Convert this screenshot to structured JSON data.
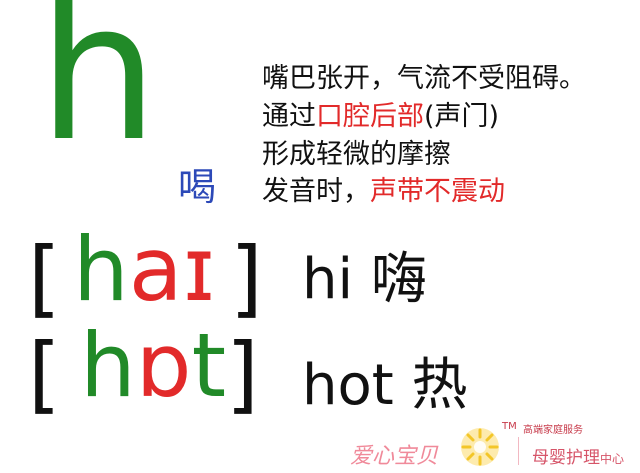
{
  "letter": "h",
  "example_hanzi": "喝",
  "description": {
    "line1": "嘴巴张开，气流不受阻碍。",
    "line2_pre": "通过",
    "line2_red": "口腔后部",
    "line2_post": "(声门)",
    "line3": "形成轻微的摩擦",
    "line4_pre": "发音时，",
    "line4_red": "声带不震动"
  },
  "examples": [
    {
      "bracket_open": "[",
      "ipa_green": "h",
      "ipa_red": "aɪ",
      "bracket_close": "]",
      "word": "hi 嗨"
    },
    {
      "bracket_open": "[",
      "ipa_green": "h",
      "ipa_red": "ɒ",
      "ipa_green2": "t",
      "bracket_close": "]",
      "word": "hot 热"
    }
  ],
  "watermark": {
    "brand": "爱心宝贝",
    "tm": "TM",
    "tagline": "高端家庭服务",
    "service_main": "母婴护理",
    "service_small": "中心"
  },
  "colors": {
    "green": "#218a28",
    "red": "#e22a2a",
    "blue": "#2c49b8"
  }
}
